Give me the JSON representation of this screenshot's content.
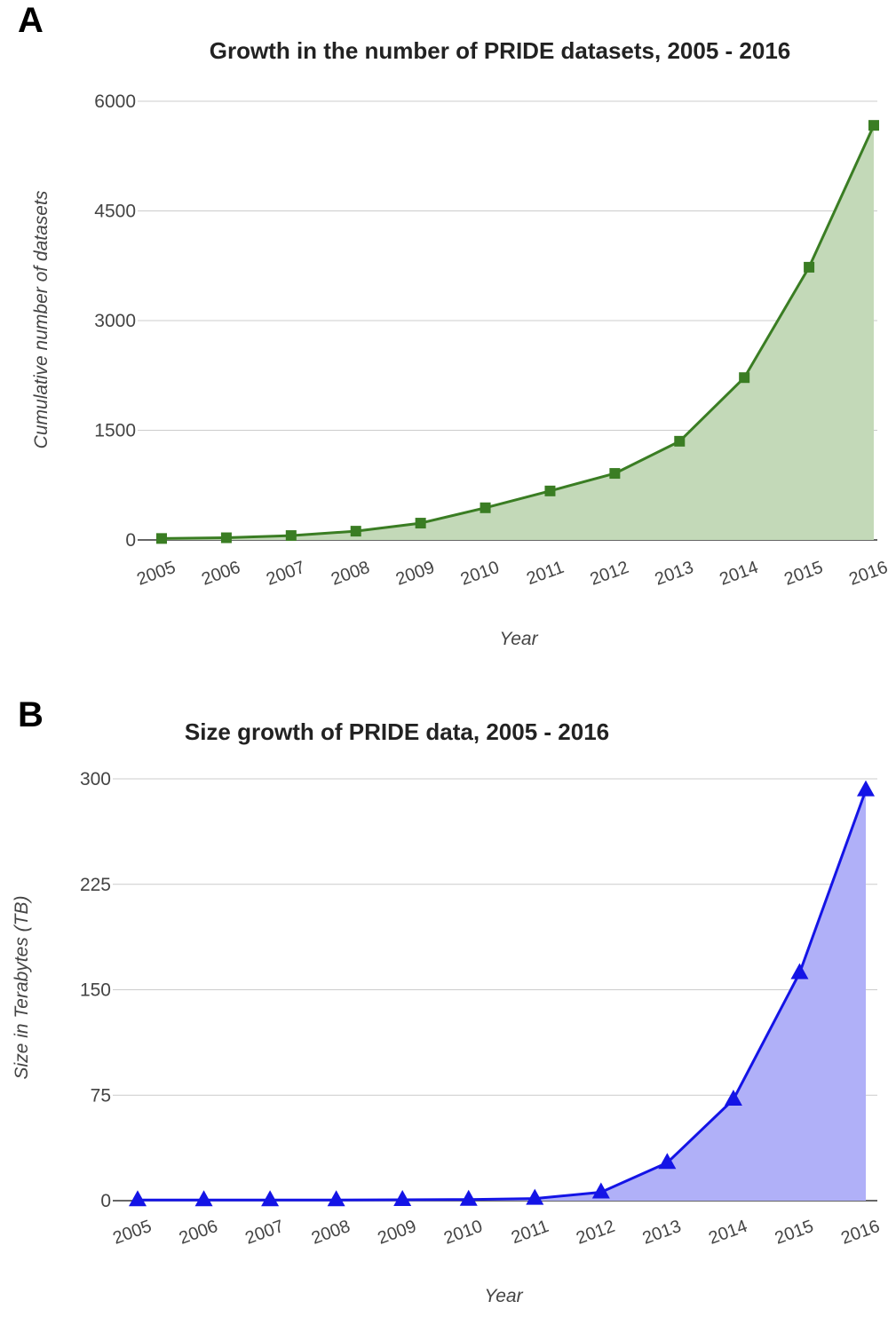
{
  "chart_data": [
    {
      "panel": "A",
      "type": "area",
      "title": "Growth in the number of PRIDE datasets, 2005 - 2016",
      "xlabel": "Year",
      "ylabel": "Cumulative number of datasets",
      "categories": [
        "2005",
        "2006",
        "2007",
        "2008",
        "2009",
        "2010",
        "2011",
        "2012",
        "2013",
        "2014",
        "2015",
        "2016"
      ],
      "series": [
        {
          "values": [
            20,
            30,
            60,
            120,
            230,
            440,
            670,
            910,
            1350,
            2220,
            3730,
            5670
          ]
        }
      ],
      "ylim": [
        0,
        6000
      ],
      "yticks": [
        "0",
        "1500",
        "3000",
        "4500",
        "6000"
      ],
      "marker": "square",
      "line_color": "#3a7d23",
      "fill_color": "#c3d9b8",
      "grid": true
    },
    {
      "panel": "B",
      "type": "area",
      "title": "Size growth of PRIDE data, 2005 - 2016",
      "xlabel": "Year",
      "ylabel": "Size in Terabytes (TB)",
      "categories": [
        "2005",
        "2006",
        "2007",
        "2008",
        "2009",
        "2010",
        "2011",
        "2012",
        "2013",
        "2014",
        "2015",
        "2016"
      ],
      "series": [
        {
          "values": [
            0.5,
            0.5,
            0.5,
            0.5,
            0.6,
            0.8,
            1.5,
            6,
            27,
            72,
            162,
            292
          ]
        }
      ],
      "ylim": [
        0,
        300
      ],
      "yticks": [
        "0",
        "75",
        "150",
        "225",
        "300"
      ],
      "marker": "triangle",
      "line_color": "#1414e6",
      "fill_color": "#b0b0f8",
      "grid": true
    }
  ]
}
